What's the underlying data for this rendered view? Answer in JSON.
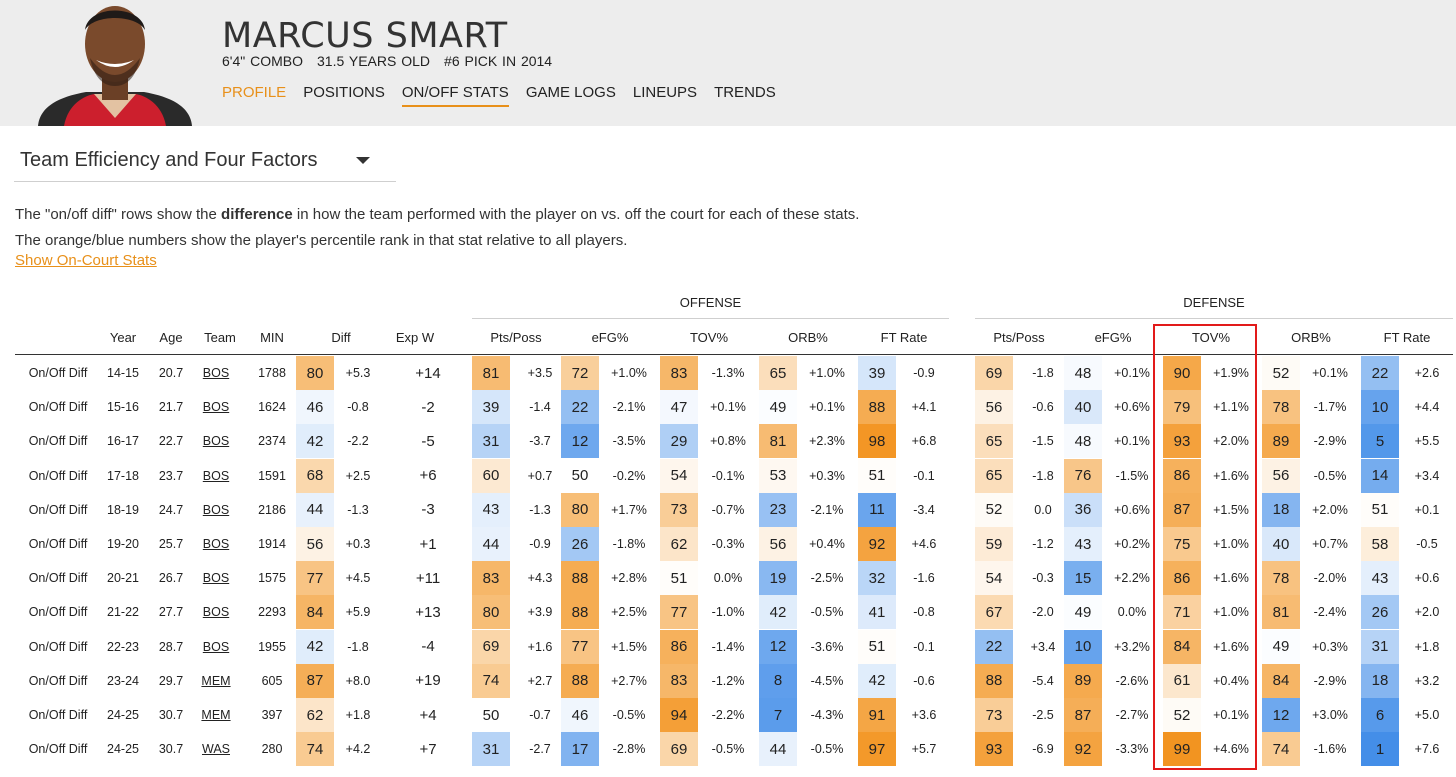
{
  "player": {
    "name": "MARCUS SMART",
    "height_pos": "6'4\" COMBO",
    "age": "31.5 YEARS OLD",
    "pick": "#6 PICK IN 2014"
  },
  "nav": [
    "PROFILE",
    "POSITIONS",
    "ON/OFF STATS",
    "GAME LOGS",
    "LINEUPS",
    "TRENDS"
  ],
  "selector": {
    "label": "Team Efficiency and Four Factors"
  },
  "description": {
    "line1_pre": "The \"on/off diff\" rows show the ",
    "line1_bold": "difference",
    "line1_post": " in how the team performed with the player on vs. off the court for each of these stats.",
    "line2": "The orange/blue numbers show the player's percentile rank in that stat relative to all players."
  },
  "show_link": "Show On-Court Stats",
  "colors": {
    "accent": "#e8901a",
    "highlight_box": "#e21a1a"
  },
  "table": {
    "groups": [
      "OFFENSE",
      "DEFENSE"
    ],
    "headers": [
      "Year",
      "Age",
      "Team",
      "MIN",
      "Diff",
      "Exp W",
      "Pts/Poss",
      "eFG%",
      "TOV%",
      "ORB%",
      "FT Rate",
      "Pts/Poss",
      "eFG%",
      "TOV%",
      "ORB%",
      "FT Rate"
    ],
    "rows": [
      {
        "label": "On/Off Diff",
        "year": "14-15",
        "age": "20.7",
        "team": "BOS",
        "min": "1788",
        "diff": [
          80,
          "+5.3"
        ],
        "expw": "+14",
        "off": [
          [
            81,
            "+3.5"
          ],
          [
            72,
            "+1.0%"
          ],
          [
            83,
            "-1.3%"
          ],
          [
            65,
            "+1.0%"
          ],
          [
            39,
            "-0.9"
          ]
        ],
        "def": [
          [
            69,
            "-1.8"
          ],
          [
            48,
            "+0.1%"
          ],
          [
            90,
            "+1.9%"
          ],
          [
            52,
            "+0.1%"
          ],
          [
            22,
            "+2.6"
          ]
        ]
      },
      {
        "label": "On/Off Diff",
        "year": "15-16",
        "age": "21.7",
        "team": "BOS",
        "min": "1624",
        "diff": [
          46,
          "-0.8"
        ],
        "expw": "-2",
        "off": [
          [
            39,
            "-1.4"
          ],
          [
            22,
            "-2.1%"
          ],
          [
            47,
            "+0.1%"
          ],
          [
            49,
            "+0.1%"
          ],
          [
            88,
            "+4.1"
          ]
        ],
        "def": [
          [
            56,
            "-0.6"
          ],
          [
            40,
            "+0.6%"
          ],
          [
            79,
            "+1.1%"
          ],
          [
            78,
            "-1.7%"
          ],
          [
            10,
            "+4.4"
          ]
        ]
      },
      {
        "label": "On/Off Diff",
        "year": "16-17",
        "age": "22.7",
        "team": "BOS",
        "min": "2374",
        "diff": [
          42,
          "-2.2"
        ],
        "expw": "-5",
        "off": [
          [
            31,
            "-3.7"
          ],
          [
            12,
            "-3.5%"
          ],
          [
            29,
            "+0.8%"
          ],
          [
            81,
            "+2.3%"
          ],
          [
            98,
            "+6.8"
          ]
        ],
        "def": [
          [
            65,
            "-1.5"
          ],
          [
            48,
            "+0.1%"
          ],
          [
            93,
            "+2.0%"
          ],
          [
            89,
            "-2.9%"
          ],
          [
            5,
            "+5.5"
          ]
        ]
      },
      {
        "label": "On/Off Diff",
        "year": "17-18",
        "age": "23.7",
        "team": "BOS",
        "min": "1591",
        "diff": [
          68,
          "+2.5"
        ],
        "expw": "+6",
        "off": [
          [
            60,
            "+0.7"
          ],
          [
            50,
            "-0.2%"
          ],
          [
            54,
            "-0.1%"
          ],
          [
            53,
            "+0.3%"
          ],
          [
            51,
            "-0.1"
          ]
        ],
        "def": [
          [
            65,
            "-1.8"
          ],
          [
            76,
            "-1.5%"
          ],
          [
            86,
            "+1.6%"
          ],
          [
            56,
            "-0.5%"
          ],
          [
            14,
            "+3.4"
          ]
        ]
      },
      {
        "label": "On/Off Diff",
        "year": "18-19",
        "age": "24.7",
        "team": "BOS",
        "min": "2186",
        "diff": [
          44,
          "-1.3"
        ],
        "expw": "-3",
        "off": [
          [
            43,
            "-1.3"
          ],
          [
            80,
            "+1.7%"
          ],
          [
            73,
            "-0.7%"
          ],
          [
            23,
            "-2.1%"
          ],
          [
            11,
            "-3.4"
          ]
        ],
        "def": [
          [
            52,
            "0.0"
          ],
          [
            36,
            "+0.6%"
          ],
          [
            87,
            "+1.5%"
          ],
          [
            18,
            "+2.0%"
          ],
          [
            51,
            "+0.1"
          ]
        ]
      },
      {
        "label": "On/Off Diff",
        "year": "19-20",
        "age": "25.7",
        "team": "BOS",
        "min": "1914",
        "diff": [
          56,
          "+0.3"
        ],
        "expw": "+1",
        "off": [
          [
            44,
            "-0.9"
          ],
          [
            26,
            "-1.8%"
          ],
          [
            62,
            "-0.3%"
          ],
          [
            56,
            "+0.4%"
          ],
          [
            92,
            "+4.6"
          ]
        ],
        "def": [
          [
            59,
            "-1.2"
          ],
          [
            43,
            "+0.2%"
          ],
          [
            75,
            "+1.0%"
          ],
          [
            40,
            "+0.7%"
          ],
          [
            58,
            "-0.5"
          ]
        ]
      },
      {
        "label": "On/Off Diff",
        "year": "20-21",
        "age": "26.7",
        "team": "BOS",
        "min": "1575",
        "diff": [
          77,
          "+4.5"
        ],
        "expw": "+11",
        "off": [
          [
            83,
            "+4.3"
          ],
          [
            88,
            "+2.8%"
          ],
          [
            51,
            "0.0%"
          ],
          [
            19,
            "-2.5%"
          ],
          [
            32,
            "-1.6"
          ]
        ],
        "def": [
          [
            54,
            "-0.3"
          ],
          [
            15,
            "+2.2%"
          ],
          [
            86,
            "+1.6%"
          ],
          [
            78,
            "-2.0%"
          ],
          [
            43,
            "+0.6"
          ]
        ]
      },
      {
        "label": "On/Off Diff",
        "year": "21-22",
        "age": "27.7",
        "team": "BOS",
        "min": "2293",
        "diff": [
          84,
          "+5.9"
        ],
        "expw": "+13",
        "off": [
          [
            80,
            "+3.9"
          ],
          [
            88,
            "+2.5%"
          ],
          [
            77,
            "-1.0%"
          ],
          [
            42,
            "-0.5%"
          ],
          [
            41,
            "-0.8"
          ]
        ],
        "def": [
          [
            67,
            "-2.0"
          ],
          [
            49,
            "0.0%"
          ],
          [
            71,
            "+1.0%"
          ],
          [
            81,
            "-2.4%"
          ],
          [
            26,
            "+2.0"
          ]
        ]
      },
      {
        "label": "On/Off Diff",
        "year": "22-23",
        "age": "28.7",
        "team": "BOS",
        "min": "1955",
        "diff": [
          42,
          "-1.8"
        ],
        "expw": "-4",
        "off": [
          [
            69,
            "+1.6"
          ],
          [
            77,
            "+1.5%"
          ],
          [
            86,
            "-1.4%"
          ],
          [
            12,
            "-3.6%"
          ],
          [
            51,
            "-0.1"
          ]
        ],
        "def": [
          [
            22,
            "+3.4"
          ],
          [
            10,
            "+3.2%"
          ],
          [
            84,
            "+1.6%"
          ],
          [
            49,
            "+0.3%"
          ],
          [
            31,
            "+1.8"
          ]
        ]
      },
      {
        "label": "On/Off Diff",
        "year": "23-24",
        "age": "29.7",
        "team": "MEM",
        "min": "605",
        "diff": [
          87,
          "+8.0"
        ],
        "expw": "+19",
        "off": [
          [
            74,
            "+2.7"
          ],
          [
            88,
            "+2.7%"
          ],
          [
            83,
            "-1.2%"
          ],
          [
            8,
            "-4.5%"
          ],
          [
            42,
            "-0.6"
          ]
        ],
        "def": [
          [
            88,
            "-5.4"
          ],
          [
            89,
            "-2.6%"
          ],
          [
            61,
            "+0.4%"
          ],
          [
            84,
            "-2.9%"
          ],
          [
            18,
            "+3.2"
          ]
        ]
      },
      {
        "label": "On/Off Diff",
        "year": "24-25",
        "age": "30.7",
        "team": "MEM",
        "min": "397",
        "diff": [
          62,
          "+1.8"
        ],
        "expw": "+4",
        "off": [
          [
            50,
            "-0.7"
          ],
          [
            46,
            "-0.5%"
          ],
          [
            94,
            "-2.2%"
          ],
          [
            7,
            "-4.3%"
          ],
          [
            91,
            "+3.6"
          ]
        ],
        "def": [
          [
            73,
            "-2.5"
          ],
          [
            87,
            "-2.7%"
          ],
          [
            52,
            "+0.1%"
          ],
          [
            12,
            "+3.0%"
          ],
          [
            6,
            "+5.0"
          ]
        ]
      },
      {
        "label": "On/Off Diff",
        "year": "24-25",
        "age": "30.7",
        "team": "WAS",
        "min": "280",
        "diff": [
          74,
          "+4.2"
        ],
        "expw": "+7",
        "off": [
          [
            31,
            "-2.7"
          ],
          [
            17,
            "-2.8%"
          ],
          [
            69,
            "-0.5%"
          ],
          [
            44,
            "-0.5%"
          ],
          [
            97,
            "+5.7"
          ]
        ],
        "def": [
          [
            93,
            "-6.9"
          ],
          [
            92,
            "-3.3%"
          ],
          [
            99,
            "+4.6%"
          ],
          [
            74,
            "-1.6%"
          ],
          [
            1,
            "+7.6"
          ]
        ]
      }
    ]
  }
}
